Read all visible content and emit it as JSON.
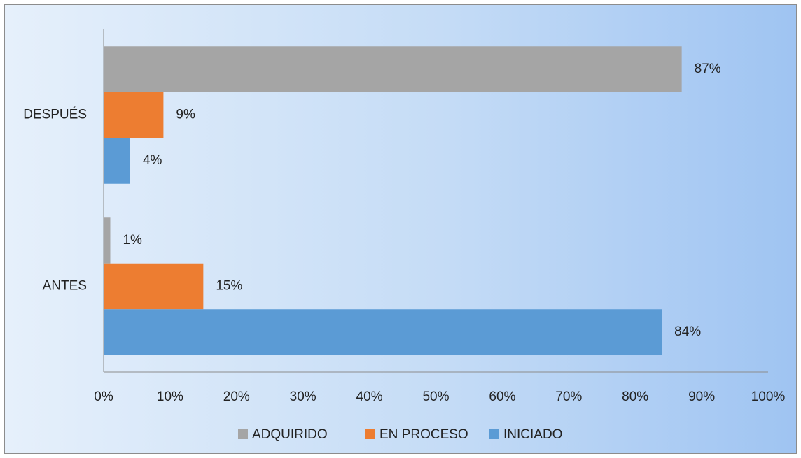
{
  "chart_data": {
    "type": "hbar",
    "categories": [
      "ANTES",
      "DESPUÉS"
    ],
    "series": [
      {
        "name": "ADQUIRIDO",
        "color": "#a5a5a5",
        "values": [
          1,
          87
        ],
        "value_labels": [
          "1%",
          "87%"
        ]
      },
      {
        "name": "EN PROCESO",
        "color": "#ed7d31",
        "values": [
          15,
          9
        ],
        "value_labels": [
          "15%",
          "9%"
        ]
      },
      {
        "name": "INICIADO",
        "color": "#5b9bd5",
        "values": [
          84,
          4
        ],
        "value_labels": [
          "84%",
          "4%"
        ]
      }
    ],
    "xlim": [
      0,
      100
    ],
    "xticks": [
      {
        "value": 0,
        "label": "0%"
      },
      {
        "value": 10,
        "label": "10%"
      },
      {
        "value": 20,
        "label": "20%"
      },
      {
        "value": 30,
        "label": "30%"
      },
      {
        "value": 40,
        "label": "40%"
      },
      {
        "value": 50,
        "label": "50%"
      },
      {
        "value": 60,
        "label": "60%"
      },
      {
        "value": 70,
        "label": "70%"
      },
      {
        "value": 80,
        "label": "80%"
      },
      {
        "value": 90,
        "label": "90%"
      },
      {
        "value": 100,
        "label": "100%"
      }
    ],
    "grid": false,
    "legend": "bottom"
  }
}
